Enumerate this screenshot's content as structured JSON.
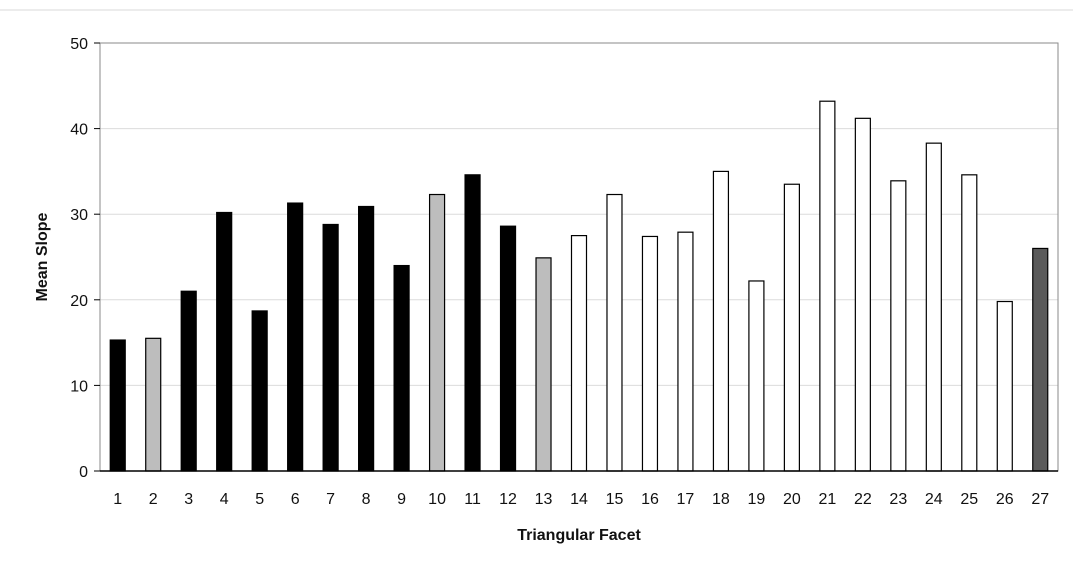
{
  "chart_data": {
    "type": "bar",
    "title": "",
    "xlabel": "Triangular Facet",
    "ylabel": "Mean Slope",
    "ylim": [
      0,
      50
    ],
    "yticks": [
      0,
      10,
      20,
      30,
      40,
      50
    ],
    "grid": true,
    "categories": [
      "1",
      "2",
      "3",
      "4",
      "5",
      "6",
      "7",
      "8",
      "9",
      "10",
      "11",
      "12",
      "13",
      "14",
      "15",
      "16",
      "17",
      "18",
      "19",
      "20",
      "21",
      "22",
      "23",
      "24",
      "25",
      "26",
      "27"
    ],
    "values": [
      15.3,
      15.5,
      21.0,
      30.2,
      18.7,
      31.3,
      28.8,
      30.9,
      24.0,
      32.3,
      34.6,
      28.6,
      24.9,
      27.5,
      32.3,
      27.4,
      27.9,
      35.0,
      22.2,
      33.5,
      43.2,
      41.2,
      33.9,
      38.3,
      34.6,
      19.8,
      26.0
    ],
    "colors": [
      "#000000",
      "#bdbdbd",
      "#000000",
      "#000000",
      "#000000",
      "#000000",
      "#000000",
      "#000000",
      "#000000",
      "#bdbdbd",
      "#000000",
      "#000000",
      "#bdbdbd",
      "#ffffff",
      "#ffffff",
      "#ffffff",
      "#ffffff",
      "#ffffff",
      "#ffffff",
      "#ffffff",
      "#ffffff",
      "#ffffff",
      "#ffffff",
      "#ffffff",
      "#ffffff",
      "#ffffff",
      "#5a5a5a"
    ]
  }
}
